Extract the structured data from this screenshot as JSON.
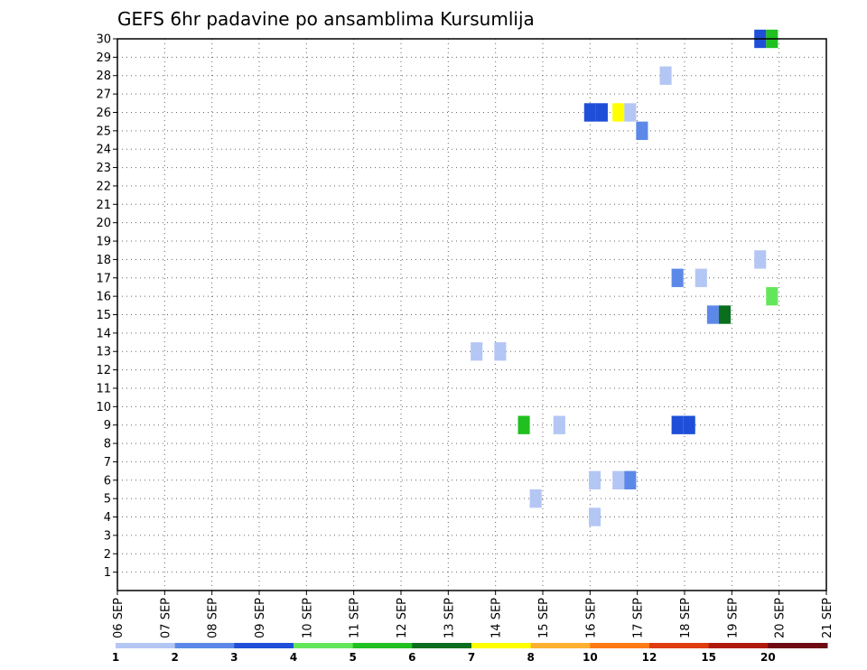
{
  "chart_data": {
    "type": "heatmap",
    "title": "GEFS 6hr padavine po ansamblima Kursumlija",
    "xlabel": "",
    "ylabel": "",
    "x_ticks": [
      "06 SEP",
      "07 SEP",
      "08 SEP",
      "09 SEP",
      "10 SEP",
      "11 SEP",
      "12 SEP",
      "13 SEP",
      "14 SEP",
      "15 SEP",
      "16 SEP",
      "17 SEP",
      "18 SEP",
      "19 SEP",
      "20 SEP",
      "21 SEP"
    ],
    "y_ticks": [
      "1",
      "2",
      "3",
      "4",
      "5",
      "6",
      "7",
      "8",
      "9",
      "10",
      "11",
      "12",
      "13",
      "14",
      "15",
      "16",
      "17",
      "18",
      "19",
      "20",
      "21",
      "22",
      "23",
      "24",
      "25",
      "26",
      "27",
      "28",
      "29",
      "30"
    ],
    "xlim_days": [
      6,
      21
    ],
    "ylim": [
      0,
      30
    ],
    "grid": true,
    "colorbar": {
      "labels": [
        "1",
        "2",
        "3",
        "4",
        "5",
        "6",
        "7",
        "8",
        "10",
        "12",
        "15",
        "20"
      ],
      "colors": [
        "#b4c6f4",
        "#5c88e8",
        "#1f4fd8",
        "#64e65a",
        "#20c020",
        "#0a6e1e",
        "#ffff00",
        "#ffb030",
        "#ff7a14",
        "#e03c10",
        "#b01a0a",
        "#6e0a14"
      ]
    },
    "cells": [
      {
        "member": 30,
        "day": 19.6,
        "level": 3
      },
      {
        "member": 30,
        "day": 19.85,
        "level": 5
      },
      {
        "member": 28,
        "day": 17.6,
        "level": 1
      },
      {
        "member": 26,
        "day": 16.0,
        "level": 3
      },
      {
        "member": 26,
        "day": 16.25,
        "level": 3
      },
      {
        "member": 26,
        "day": 16.6,
        "level": 7
      },
      {
        "member": 26,
        "day": 16.85,
        "level": 1
      },
      {
        "member": 25,
        "day": 17.1,
        "level": 2
      },
      {
        "member": 18,
        "day": 19.6,
        "level": 1
      },
      {
        "member": 17,
        "day": 17.85,
        "level": 2
      },
      {
        "member": 17,
        "day": 18.35,
        "level": 1
      },
      {
        "member": 16,
        "day": 19.85,
        "level": 4
      },
      {
        "member": 15,
        "day": 18.6,
        "level": 2
      },
      {
        "member": 15,
        "day": 18.85,
        "level": 6
      },
      {
        "member": 13,
        "day": 13.6,
        "level": 1
      },
      {
        "member": 13,
        "day": 14.1,
        "level": 1
      },
      {
        "member": 9,
        "day": 14.6,
        "level": 5
      },
      {
        "member": 9,
        "day": 15.35,
        "level": 1
      },
      {
        "member": 9,
        "day": 17.85,
        "level": 3
      },
      {
        "member": 9,
        "day": 18.1,
        "level": 3
      },
      {
        "member": 6,
        "day": 16.1,
        "level": 1
      },
      {
        "member": 6,
        "day": 16.6,
        "level": 1
      },
      {
        "member": 6,
        "day": 16.85,
        "level": 2
      },
      {
        "member": 5,
        "day": 14.85,
        "level": 1
      },
      {
        "member": 4,
        "day": 16.1,
        "level": 1
      }
    ]
  }
}
